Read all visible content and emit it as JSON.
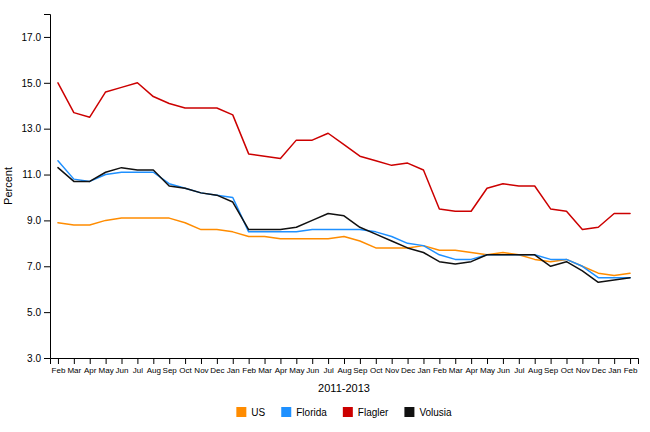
{
  "chart_data": {
    "type": "line",
    "xlabel": "2011-2013",
    "ylabel": "Percent",
    "categories": [
      "Feb",
      "Mar",
      "Apr",
      "May",
      "Jun",
      "Jul",
      "Aug",
      "Sep",
      "Oct",
      "Nov",
      "Dec",
      "Jan",
      "Feb",
      "Mar",
      "Apr",
      "May",
      "Jun",
      "Jul",
      "Aug",
      "Sep",
      "Oct",
      "Nov",
      "Dec",
      "Jan",
      "Feb",
      "Mar",
      "Apr",
      "May",
      "Jun",
      "Jul",
      "Aug",
      "Sep",
      "Oct",
      "Nov",
      "Dec",
      "Jan",
      "Feb"
    ],
    "series": [
      {
        "name": "US",
        "color": "#FF8C00",
        "values": [
          8.9,
          8.8,
          8.8,
          9.0,
          9.1,
          9.1,
          9.1,
          9.1,
          8.9,
          8.6,
          8.6,
          8.5,
          8.3,
          8.3,
          8.2,
          8.2,
          8.2,
          8.2,
          8.3,
          8.1,
          7.8,
          7.8,
          7.8,
          7.9,
          7.7,
          7.7,
          7.6,
          7.5,
          7.6,
          7.5,
          7.3,
          7.2,
          7.3,
          7.0,
          6.7,
          6.6,
          6.7
        ]
      },
      {
        "name": "Florida",
        "color": "#1E90FF",
        "values": [
          11.6,
          10.8,
          10.7,
          11.0,
          11.1,
          11.1,
          11.1,
          10.6,
          10.4,
          10.2,
          10.1,
          10.0,
          8.5,
          8.5,
          8.5,
          8.5,
          8.6,
          8.6,
          8.6,
          8.6,
          8.5,
          8.3,
          8.0,
          7.9,
          7.5,
          7.3,
          7.3,
          7.5,
          7.5,
          7.5,
          7.5,
          7.3,
          7.3,
          7.0,
          6.5,
          6.5,
          6.5
        ]
      },
      {
        "name": "Flagler",
        "color": "#CC0000",
        "values": [
          15.0,
          13.7,
          13.5,
          14.6,
          14.8,
          15.0,
          14.4,
          14.1,
          13.9,
          13.9,
          13.9,
          13.6,
          11.9,
          11.8,
          11.7,
          12.5,
          12.5,
          12.8,
          12.3,
          11.8,
          11.6,
          11.4,
          11.5,
          11.2,
          9.5,
          9.4,
          9.4,
          10.4,
          10.6,
          10.5,
          10.5,
          9.5,
          9.4,
          8.6,
          8.7,
          9.3,
          9.3
        ]
      },
      {
        "name": "Volusia",
        "color": "#111111",
        "values": [
          11.3,
          10.7,
          10.7,
          11.1,
          11.3,
          11.2,
          11.2,
          10.5,
          10.4,
          10.2,
          10.1,
          9.8,
          8.6,
          8.6,
          8.6,
          8.7,
          9.0,
          9.3,
          9.2,
          8.7,
          8.4,
          8.1,
          7.8,
          7.6,
          7.2,
          7.1,
          7.2,
          7.5,
          7.5,
          7.5,
          7.5,
          7.0,
          7.2,
          6.8,
          6.3,
          6.4,
          6.5
        ]
      }
    ],
    "ylim": [
      3.0,
      18.0
    ],
    "yticks": [
      {
        "value": 3.0,
        "label": "3.0"
      },
      {
        "value": 5.0,
        "label": "5.0"
      },
      {
        "value": 7.0,
        "label": "7.0"
      },
      {
        "value": 9.0,
        "label": "9.0"
      },
      {
        "value": 11.0,
        "label": "11.0"
      },
      {
        "value": 13.0,
        "label": "13.0"
      },
      {
        "value": 15.0,
        "label": "15.0"
      },
      {
        "value": 17.0,
        "label": "17.0"
      }
    ],
    "grid": false,
    "legend": "bottom"
  }
}
